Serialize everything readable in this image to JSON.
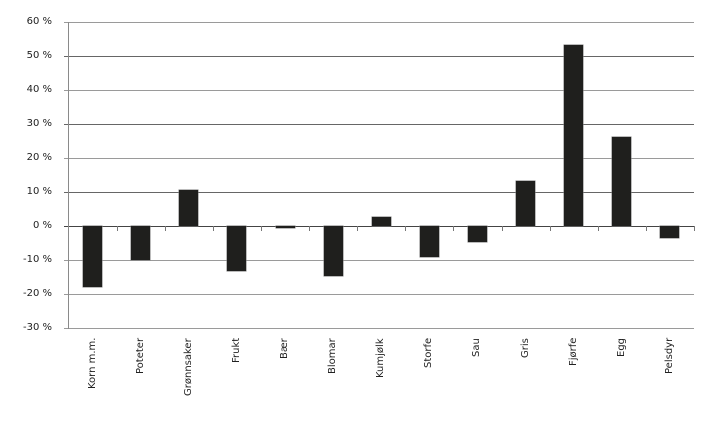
{
  "chart_data": {
    "type": "bar",
    "title": "",
    "xlabel": "",
    "ylabel": "",
    "ylim": [
      -30,
      60
    ],
    "yticks": [
      60,
      50,
      40,
      30,
      20,
      10,
      0,
      -10,
      -20,
      -30
    ],
    "ytick_labels": [
      "60 %",
      "50 %",
      "40 %",
      "30 %",
      "20 %",
      "10 %",
      "0 %",
      "-10 %",
      "-20 %",
      "-30 %"
    ],
    "grid": true,
    "legend": null,
    "categories": [
      "Korn m.m.",
      "Poteter",
      "Grønnsaker",
      "Frukt",
      "Bær",
      "Blomar",
      "Kumjølk",
      "Storfe",
      "Sau",
      "Gris",
      "Fjørfe",
      "Egg",
      "Pelsdyr"
    ],
    "values": [
      -17.9,
      -10.0,
      10.6,
      -13.2,
      -0.5,
      -14.7,
      2.6,
      -9.1,
      -4.7,
      13.2,
      53.2,
      26.2,
      -3.5
    ],
    "bar_color": "#1f1f1d"
  }
}
